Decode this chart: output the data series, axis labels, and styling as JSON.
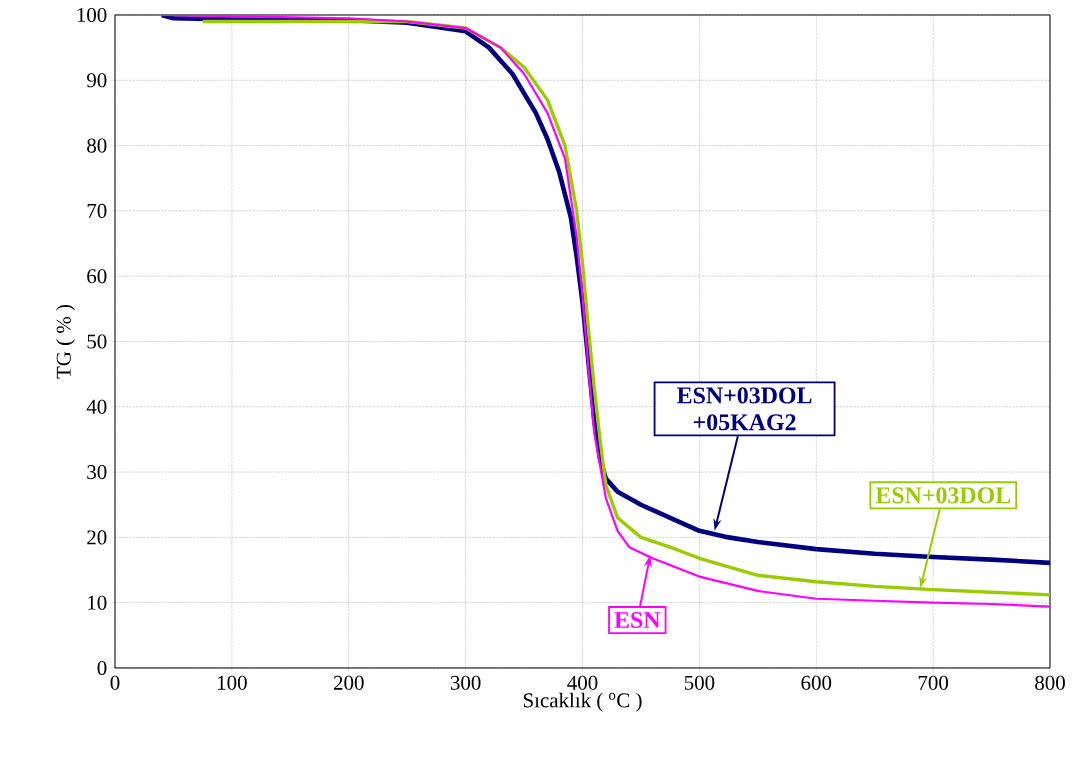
{
  "chart_data": {
    "type": "line",
    "xlabel": "Sıcaklık ( $^{o}$C )",
    "ylabel": "TG ( % )",
    "xlim": [
      0,
      800
    ],
    "ylim": [
      0,
      100
    ],
    "xticks": [
      0,
      100,
      200,
      300,
      400,
      500,
      600,
      700,
      800
    ],
    "yticks": [
      0,
      10,
      20,
      30,
      40,
      50,
      60,
      70,
      80,
      90,
      100
    ],
    "grid": true,
    "marker": "none",
    "line_style": "solid",
    "series": [
      {
        "color": "#000080",
        "x": [
          40,
          50,
          100,
          200,
          250,
          300,
          320,
          340,
          360,
          370,
          380,
          390,
          395,
          400,
          405,
          410,
          415,
          420,
          430,
          450,
          475,
          500,
          525,
          550,
          600,
          650,
          700,
          750,
          800
        ],
        "values": [
          100,
          99.5,
          99.3,
          99.2,
          98.8,
          97.5,
          95,
          91,
          85,
          81,
          76,
          69,
          63,
          56,
          47,
          38,
          32,
          29,
          27,
          25,
          23,
          21,
          20,
          19.3,
          18.2,
          17.5,
          17,
          16.6,
          16.1
        ]
      },
      {
        "color": "#99cc00",
        "x": [
          75,
          200,
          250,
          300,
          330,
          350,
          370,
          385,
          395,
          400,
          405,
          410,
          415,
          420,
          430,
          450,
          475,
          500,
          550,
          600,
          650,
          700,
          750,
          800
        ],
        "values": [
          99,
          99,
          99,
          98,
          95,
          92,
          87,
          80,
          70,
          62,
          52,
          43,
          35,
          28,
          23,
          20,
          18.5,
          16.8,
          14.2,
          13.2,
          12.5,
          12,
          11.6,
          11.2
        ]
      },
      {
        "color": "#ff00ff",
        "x": [
          40,
          100,
          200,
          250,
          300,
          330,
          350,
          370,
          385,
          395,
          400,
          405,
          410,
          420,
          430,
          440,
          460,
          500,
          550,
          600,
          650,
          700,
          750,
          800
        ],
        "values": [
          100,
          99.8,
          99.5,
          99,
          98,
          95,
          91,
          85,
          78,
          66,
          57,
          46,
          36,
          26,
          21,
          18.5,
          16.8,
          14,
          11.8,
          10.6,
          10.3,
          10,
          9.8,
          9.4
        ]
      }
    ],
    "annotations": [
      {
        "text": "ESN+03DOL +05KAG2",
        "x": 513,
        "y": 21
      },
      {
        "text": "ESN+03DOL",
        "x": 689,
        "y": 12.2
      },
      {
        "text": "ESN",
        "x": 458,
        "y": 17.3
      }
    ]
  }
}
